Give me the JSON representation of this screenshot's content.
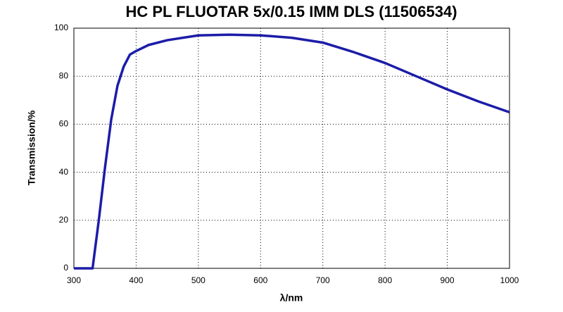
{
  "chart_data": {
    "type": "line",
    "title": "HC PL FLUOTAR 5x/0.15 IMM DLS (11506534)",
    "x_label": "λ/nm",
    "y_label": "Transmission/%",
    "x": [
      300,
      325,
      330,
      340,
      350,
      360,
      370,
      380,
      390,
      400,
      420,
      450,
      500,
      550,
      600,
      650,
      700,
      750,
      800,
      850,
      900,
      950,
      1000
    ],
    "series": [
      {
        "name": "Transmission",
        "color": "#1c1ca8",
        "values": [
          0,
          0,
          0,
          20,
          42,
          62,
          76,
          84,
          89,
          90.5,
          93,
          95,
          97,
          97.3,
          97,
          96,
          94,
          90,
          85.5,
          80,
          74.5,
          69.5,
          65
        ]
      }
    ],
    "xlim": [
      300,
      1000
    ],
    "xticks": [
      300,
      400,
      500,
      600,
      700,
      800,
      900,
      1000
    ],
    "ylim": [
      0,
      100
    ],
    "yticks": [
      0,
      20,
      40,
      60,
      80,
      100
    ],
    "grid": true
  }
}
